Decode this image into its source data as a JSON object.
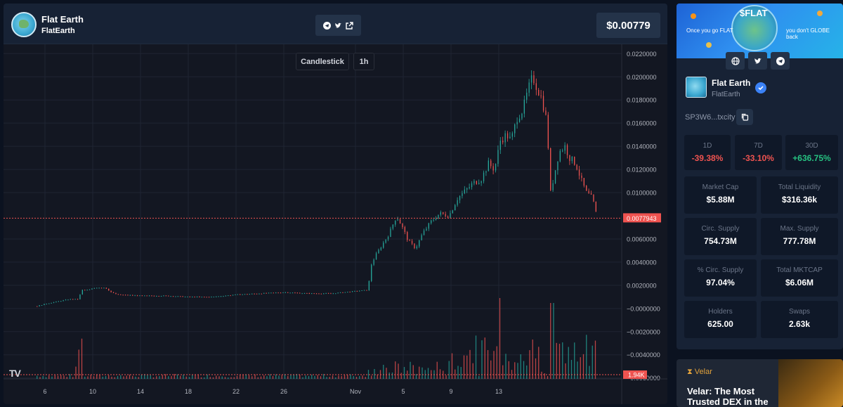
{
  "header": {
    "token_name": "Flat Earth",
    "ticker": "FlatEarth",
    "price": "$0.00779",
    "links": [
      "telegram-icon",
      "twitter-icon",
      "external-link-icon"
    ]
  },
  "chart": {
    "type_button": "Candlestick",
    "interval_button": "1h",
    "tv_logo": "TV",
    "current_price_label": "0.0077943",
    "volume_label": "1.94K"
  },
  "chart_data": {
    "type": "line",
    "x_ticks": [
      "6",
      "10",
      "14",
      "18",
      "22",
      "26",
      "Nov",
      "5",
      "9",
      "13"
    ],
    "y_ticks": [
      "0.0220000",
      "0.0200000",
      "0.0180000",
      "0.0160000",
      "0.0140000",
      "0.0120000",
      "0.0100000",
      "0.0077943",
      "0.0060000",
      "0.0040000",
      "0.0020000",
      "−0.0000000",
      "−0.0020000",
      "−0.0040000",
      "−0.0060000"
    ],
    "ylim": [
      -0.0062,
      0.0222
    ],
    "grid": true,
    "colors": {
      "up": "#26a69a",
      "down": "#ef5350",
      "grid": "#1f2433",
      "price_line": "#ef5350"
    },
    "series": [
      {
        "values": [
          [
            5.3,
            0.0002
          ],
          [
            6.0,
            0.0004
          ],
          [
            7.0,
            0.0006
          ],
          [
            8.0,
            0.0008
          ],
          [
            8.7,
            0.0008
          ],
          [
            9.1,
            0.0016
          ],
          [
            9.6,
            0.0016
          ],
          [
            10.2,
            0.0018
          ],
          [
            11.0,
            0.0018
          ],
          [
            11.5,
            0.0014
          ],
          [
            12.0,
            0.0012
          ],
          [
            14.0,
            0.0011
          ],
          [
            16.0,
            0.0011
          ],
          [
            18.0,
            0.001
          ],
          [
            20.0,
            0.001
          ],
          [
            22.0,
            0.0012
          ],
          [
            24.0,
            0.0013
          ],
          [
            26.0,
            0.0014
          ],
          [
            28.0,
            0.0013
          ],
          [
            30.0,
            0.0013
          ],
          [
            32.0,
            0.0015
          ],
          [
            33.0,
            0.0016
          ],
          [
            33.3,
            0.0038
          ],
          [
            33.6,
            0.0045
          ],
          [
            34.2,
            0.0055
          ],
          [
            34.8,
            0.0065
          ],
          [
            35.4,
            0.008
          ],
          [
            35.8,
            0.0072
          ],
          [
            36.4,
            0.0058
          ],
          [
            37.0,
            0.0052
          ],
          [
            37.6,
            0.0065
          ],
          [
            38.3,
            0.0075
          ],
          [
            39.0,
            0.0082
          ],
          [
            39.8,
            0.008
          ],
          [
            40.5,
            0.0095
          ],
          [
            41.2,
            0.0102
          ],
          [
            41.8,
            0.0108
          ],
          [
            42.5,
            0.0112
          ],
          [
            43.1,
            0.0125
          ],
          [
            43.6,
            0.012
          ],
          [
            44.1,
            0.0145
          ],
          [
            44.6,
            0.015
          ],
          [
            45.0,
            0.0145
          ],
          [
            45.5,
            0.0165
          ],
          [
            46.0,
            0.0172
          ],
          [
            46.4,
            0.0188
          ],
          [
            46.8,
            0.02
          ],
          [
            47.2,
            0.019
          ],
          [
            47.6,
            0.018
          ],
          [
            48.0,
            0.016
          ],
          [
            48.3,
            0.01
          ],
          [
            48.7,
            0.012
          ],
          [
            49.0,
            0.0135
          ],
          [
            49.5,
            0.014
          ],
          [
            49.9,
            0.013
          ],
          [
            50.4,
            0.0125
          ],
          [
            50.9,
            0.011
          ],
          [
            51.3,
            0.01
          ],
          [
            51.8,
            0.0095
          ],
          [
            52.2,
            0.0078
          ]
        ]
      }
    ]
  },
  "sidebar": {
    "banner_title": "$FLAT",
    "banner_left": "Once you go FLAT",
    "banner_right": "you don't GLOBE back",
    "social": [
      "globe-icon",
      "twitter-icon",
      "telegram-icon"
    ],
    "name": "Flat Earth",
    "ticker": "FlatEarth",
    "address": "SP3W6...txcity",
    "changes": [
      {
        "label": "1D",
        "value": "-39.38%",
        "dir": "neg"
      },
      {
        "label": "7D",
        "value": "-33.10%",
        "dir": "neg"
      },
      {
        "label": "30D",
        "value": "+636.75%",
        "dir": "pos"
      }
    ],
    "stats": [
      {
        "label": "Market Cap",
        "value": "$5.88M"
      },
      {
        "label": "Total Liquidity",
        "value": "$316.36k"
      },
      {
        "label": "Circ. Supply",
        "value": "754.73M"
      },
      {
        "label": "Max. Supply",
        "value": "777.78M"
      },
      {
        "label": "% Circ. Supply",
        "value": "97.04%"
      },
      {
        "label": "Total MKTCAP",
        "value": "$6.06M"
      },
      {
        "label": "Holders",
        "value": "625.00"
      },
      {
        "label": "Swaps",
        "value": "2.63k"
      }
    ]
  },
  "promo": {
    "brand": "Velar",
    "text": "Velar: The Most Trusted DEX in the"
  }
}
